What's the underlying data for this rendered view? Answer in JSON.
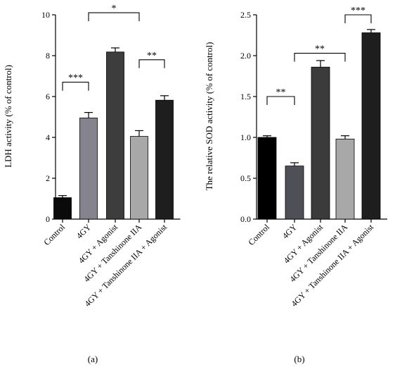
{
  "chart_data": [
    {
      "type": "bar",
      "panel_label": "(a)",
      "ylabel": "LDH activity (% of control)",
      "ylim": [
        0,
        10
      ],
      "yticks": [
        0,
        2,
        4,
        6,
        8,
        10
      ],
      "categories": [
        "Control",
        "4GY",
        "4GY + Agonist",
        "4GY + Tanshinone IIA",
        "4GY + Tanshinone IIA + Agonist"
      ],
      "values": [
        1.05,
        4.95,
        8.18,
        4.05,
        5.82
      ],
      "errors": [
        0.1,
        0.27,
        0.2,
        0.28,
        0.22
      ],
      "colors": [
        "#0a0a0a",
        "#85838d",
        "#3d3d3d",
        "#a8a8a8",
        "#1e1e1e"
      ],
      "significance": [
        {
          "from": 0,
          "to": 1,
          "y": 6.7,
          "label": "***"
        },
        {
          "from": 1,
          "to": 3,
          "y": 10.1,
          "label": "*"
        },
        {
          "from": 3,
          "to": 4,
          "y": 7.8,
          "label": "**"
        }
      ]
    },
    {
      "type": "bar",
      "panel_label": "(b)",
      "ylabel": "The relative SOD activity (% of control)",
      "ylim": [
        0,
        2.5
      ],
      "yticks": [
        0.0,
        0.5,
        1.0,
        1.5,
        2.0,
        2.5
      ],
      "categories": [
        "Control",
        "4GY",
        "4GY + Agonist",
        "4GY + Tanshinone IIA",
        "4GY + Tanshinone IIA + Agonist"
      ],
      "values": [
        1.0,
        0.65,
        1.86,
        0.98,
        2.28
      ],
      "errors": [
        0.02,
        0.04,
        0.08,
        0.04,
        0.04
      ],
      "colors": [
        "#000000",
        "#4f4f57",
        "#3b3b3b",
        "#a8a8a8",
        "#1e1e1e"
      ],
      "significance": [
        {
          "from": 0,
          "to": 1,
          "y": 1.5,
          "label": "**"
        },
        {
          "from": 1,
          "to": 3,
          "y": 2.03,
          "label": "**"
        },
        {
          "from": 3,
          "to": 4,
          "y": 2.5,
          "label": "***"
        }
      ]
    }
  ]
}
